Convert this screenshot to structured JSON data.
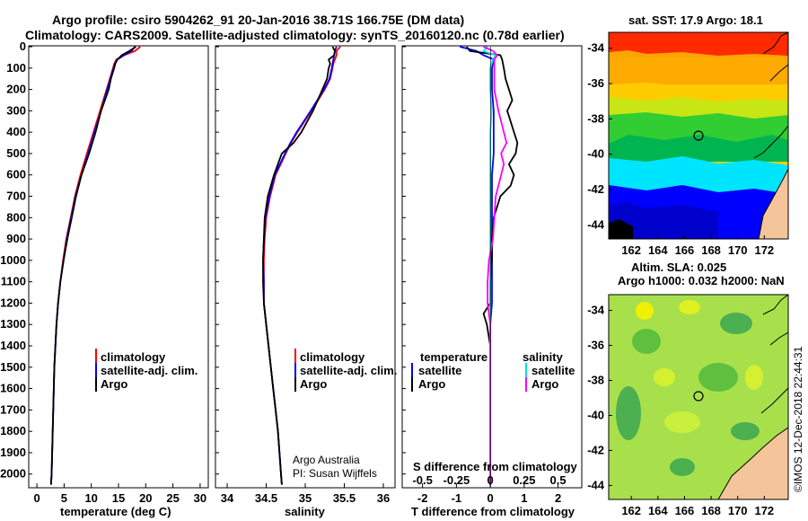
{
  "title": {
    "line1": "Argo profile: csiro 5904262_91 20-Jan-2016 38.71S 166.75E (DM data)",
    "line2": "Climatology: CARS2009. Satellite-adjusted climatology: synTS_20160120.nc (0.78d earlier)"
  },
  "colors": {
    "climatology": "#ff0000",
    "satellite": "#0000ff",
    "argo": "#000000",
    "sat_salinity": "#00e5e5",
    "argo_salinity": "#ff00ff"
  },
  "depth_axis": {
    "ticks": [
      "0",
      "100",
      "200",
      "300",
      "400",
      "500",
      "600",
      "700",
      "800",
      "900",
      "1000",
      "1100",
      "1200",
      "1300",
      "1400",
      "1500",
      "1600",
      "1700",
      "1800",
      "1900",
      "2000"
    ],
    "ylim": [
      0,
      2060
    ]
  },
  "legend_main": {
    "climatology": "climatology",
    "satellite": "satellite-adj. clim.",
    "argo": "Argo"
  },
  "legend_diff": {
    "temp_heading": "temperature",
    "sal_heading": "salinity",
    "satellite": "satellite",
    "argo": "Argo"
  },
  "credits": {
    "line1": "Argo Australia",
    "line2": "PI: Susan Wijffels"
  },
  "watermark": "©IMOS 12-Dec-2018 22:44:31",
  "chart_data": [
    {
      "type": "line",
      "name": "temperature",
      "xlabel": "temperature (deg C)",
      "xticks": [
        "0",
        "5",
        "10",
        "15",
        "20",
        "25",
        "30"
      ],
      "xlim": [
        -1.5,
        31.5
      ],
      "ylabel": "depth",
      "series": [
        {
          "name": "climatology",
          "depth": [
            0,
            20,
            40,
            60,
            80,
            100,
            150,
            200,
            300,
            400,
            500,
            600,
            700,
            800,
            900,
            1000,
            1100,
            1200,
            1300,
            1400,
            1500,
            1600,
            1700,
            1800,
            1900,
            2000,
            2050
          ],
          "values": [
            19,
            18,
            16,
            14.6,
            14.2,
            14,
            13.4,
            12.8,
            11.6,
            10.4,
            9.2,
            8,
            7,
            6.2,
            5.4,
            4.8,
            4.3,
            3.9,
            3.6,
            3.4,
            3.2,
            3.1,
            3.0,
            2.9,
            2.8,
            2.7,
            2.6
          ]
        },
        {
          "name": "satellite-adj. clim.",
          "depth": [
            0,
            20,
            40,
            60,
            80,
            100,
            150,
            200,
            300,
            400,
            500,
            600,
            700,
            800,
            900,
            1000,
            1100,
            1200,
            1300,
            1400,
            1500,
            1600,
            1700,
            1800,
            1900,
            2000,
            2050
          ],
          "values": [
            18,
            17.4,
            16,
            14.8,
            14.3,
            14.1,
            13.5,
            12.9,
            11.8,
            10.6,
            9.4,
            8.2,
            7.1,
            6.3,
            5.5,
            4.9,
            4.3,
            3.9,
            3.6,
            3.4,
            3.2,
            3.1,
            3.0,
            2.9,
            2.8,
            2.7,
            2.6
          ]
        },
        {
          "name": "Argo",
          "depth": [
            0,
            20,
            40,
            60,
            80,
            100,
            150,
            200,
            300,
            400,
            500,
            600,
            700,
            800,
            900,
            1000,
            1100,
            1200,
            1300,
            1400,
            1500,
            1600,
            1700,
            1800,
            1900,
            2000,
            2050
          ],
          "values": [
            18.2,
            17,
            15.6,
            14.8,
            14.4,
            14.2,
            13.6,
            13.2,
            11.8,
            10.8,
            9.6,
            8.2,
            7.2,
            6.4,
            5.6,
            4.9,
            4.3,
            3.9,
            3.6,
            3.4,
            3.2,
            3.1,
            3.0,
            2.9,
            2.8,
            2.7,
            2.6
          ]
        }
      ]
    },
    {
      "type": "line",
      "name": "salinity",
      "xlabel": "salinity",
      "xticks": [
        "34",
        "34.5",
        "35",
        "35.5",
        "36"
      ],
      "xlim": [
        33.85,
        36.15
      ],
      "series": [
        {
          "name": "climatology",
          "depth": [
            0,
            20,
            40,
            60,
            80,
            100,
            150,
            200,
            300,
            400,
            450,
            500,
            600,
            700,
            800,
            900,
            1000,
            1100,
            1200,
            1300,
            1400,
            1500,
            1600,
            1700,
            1800,
            1900,
            2000,
            2050
          ],
          "values": [
            35.45,
            35.4,
            35.4,
            35.38,
            35.36,
            35.35,
            35.32,
            35.25,
            35.08,
            34.9,
            34.82,
            34.75,
            34.62,
            34.55,
            34.5,
            34.48,
            34.47,
            34.47,
            34.47,
            34.5,
            34.53,
            34.56,
            34.59,
            34.62,
            34.65,
            34.67,
            34.69,
            34.7
          ]
        },
        {
          "name": "satellite-adj. clim.",
          "depth": [
            0,
            20,
            40,
            60,
            80,
            100,
            150,
            200,
            300,
            400,
            450,
            500,
            600,
            700,
            800,
            900,
            1000,
            1100,
            1200,
            1300,
            1400,
            1500,
            1600,
            1700,
            1800,
            1900,
            2000,
            2050
          ],
          "values": [
            35.4,
            35.38,
            35.37,
            35.36,
            35.35,
            35.34,
            35.31,
            35.24,
            35.07,
            34.89,
            34.81,
            34.74,
            34.61,
            34.54,
            34.49,
            34.47,
            34.46,
            34.47,
            34.47,
            34.5,
            34.53,
            34.56,
            34.59,
            34.62,
            34.65,
            34.67,
            34.69,
            34.7
          ]
        },
        {
          "name": "Argo",
          "depth": [
            0,
            20,
            40,
            60,
            80,
            100,
            150,
            200,
            300,
            400,
            450,
            500,
            600,
            700,
            800,
            900,
            1000,
            1100,
            1200,
            1300,
            1400,
            1500,
            1600,
            1700,
            1800,
            1900,
            2000,
            2050
          ],
          "values": [
            35.35,
            35.38,
            35.37,
            35.3,
            35.32,
            35.3,
            35.28,
            35.22,
            35.1,
            34.95,
            34.85,
            34.7,
            34.6,
            34.52,
            34.48,
            34.47,
            34.46,
            34.46,
            34.47,
            34.5,
            34.53,
            34.56,
            34.59,
            34.62,
            34.65,
            34.67,
            34.69,
            34.7
          ]
        }
      ]
    },
    {
      "type": "line",
      "name": "difference",
      "xlabel": "T difference from climatology",
      "xticks": [
        "-2",
        "-1",
        "0",
        "1",
        "2"
      ],
      "xlim": [
        -2.6,
        2.7
      ],
      "x2label": "S difference from climatology",
      "x2ticks": [
        "-0.5",
        "-0.25",
        "0",
        "0.25",
        "0.5"
      ],
      "series": [
        {
          "name": "temperature satellite",
          "depth": [
            0,
            20,
            40,
            60,
            100,
            200,
            300,
            400,
            500,
            600,
            700,
            800,
            900,
            1000,
            1100,
            1200,
            1300,
            1400,
            1500,
            1600,
            1700,
            1800,
            1900,
            2000,
            2050
          ],
          "values": [
            -0.9,
            -0.4,
            -0.2,
            0.1,
            0.05,
            0.05,
            0.1,
            0.1,
            0.1,
            0.05,
            0.05,
            0.05,
            0.05,
            0.05,
            0.05,
            0.05,
            0.0,
            0.0,
            0.0,
            0.0,
            0.0,
            0.0,
            0.0,
            0.0,
            0.0
          ]
        },
        {
          "name": "temperature Argo",
          "depth": [
            0,
            20,
            40,
            60,
            100,
            150,
            200,
            250,
            300,
            350,
            400,
            450,
            500,
            550,
            600,
            650,
            700,
            750,
            800,
            900,
            1000,
            1100,
            1200,
            1250,
            1300,
            1400,
            1500,
            1600,
            1700,
            1800,
            1900,
            2000,
            2050
          ],
          "values": [
            -0.7,
            -0.6,
            0.3,
            0.35,
            0.4,
            0.45,
            0.55,
            0.65,
            0.5,
            0.6,
            0.7,
            0.8,
            0.75,
            0.55,
            0.7,
            0.6,
            0.3,
            0.2,
            0.1,
            0.05,
            0.05,
            0.0,
            0.0,
            -0.2,
            -0.1,
            0.0,
            0.0,
            0.0,
            0.0,
            0.0,
            0.0,
            0.0,
            0.0
          ]
        },
        {
          "name": "salinity satellite",
          "depth": [
            0,
            20,
            40,
            60,
            100,
            150,
            200,
            300,
            400,
            500,
            600,
            700,
            800,
            900,
            1000,
            1100,
            1200,
            1300,
            1400,
            1500,
            1600,
            1700,
            1800,
            1900,
            2000,
            2050
          ],
          "values": [
            -0.02,
            -0.05,
            0.04,
            0.02,
            0.0,
            0.0,
            0.0,
            0.01,
            0.0,
            0.0,
            0.0,
            0.0,
            0.0,
            0.0,
            0.0,
            0.0,
            0.0,
            0.0,
            0.0,
            0.0,
            0.0,
            0.0,
            0.0,
            0.0,
            0.0,
            0.0
          ]
        },
        {
          "name": "salinity Argo",
          "depth": [
            0,
            20,
            40,
            60,
            100,
            150,
            200,
            300,
            400,
            450,
            500,
            550,
            600,
            700,
            800,
            900,
            1000,
            1100,
            1200,
            1300,
            1400,
            1500,
            1600,
            1700,
            1800,
            1900,
            2000,
            2050
          ],
          "values": [
            -0.05,
            0.02,
            0.05,
            0.03,
            0.03,
            0.03,
            0.03,
            0.06,
            0.1,
            0.12,
            0.08,
            0.1,
            0.08,
            0.04,
            0.03,
            0.02,
            -0.01,
            -0.02,
            -0.02,
            0.0,
            0.0,
            0.0,
            0.0,
            0.0,
            0.0,
            0.0,
            0.0,
            0.0
          ]
        }
      ]
    },
    {
      "type": "heatmap",
      "name": "sst map",
      "title": "sat. SST: 17.9 Argo: 18.1",
      "xticks": [
        "162",
        "164",
        "166",
        "168",
        "170",
        "172"
      ],
      "yticks": [
        "-34",
        "-36",
        "-38",
        "-40",
        "-42",
        "-44"
      ],
      "xlim": [
        160.3,
        173.8
      ],
      "ylim": [
        -44.8,
        -33.1
      ],
      "marker": [
        166.75,
        -38.71
      ]
    },
    {
      "type": "heatmap",
      "name": "sla map",
      "title_line1": "Altim. SLA: 0.025",
      "title_line2": "Argo h1000: 0.032 h2000: NaN",
      "xticks": [
        "162",
        "164",
        "166",
        "168",
        "170",
        "172"
      ],
      "yticks": [
        "-34",
        "-36",
        "-38",
        "-40",
        "-42",
        "-44"
      ],
      "xlim": [
        160.3,
        173.8
      ],
      "ylim": [
        -44.8,
        -33.1
      ],
      "marker": [
        166.75,
        -38.71
      ]
    }
  ]
}
